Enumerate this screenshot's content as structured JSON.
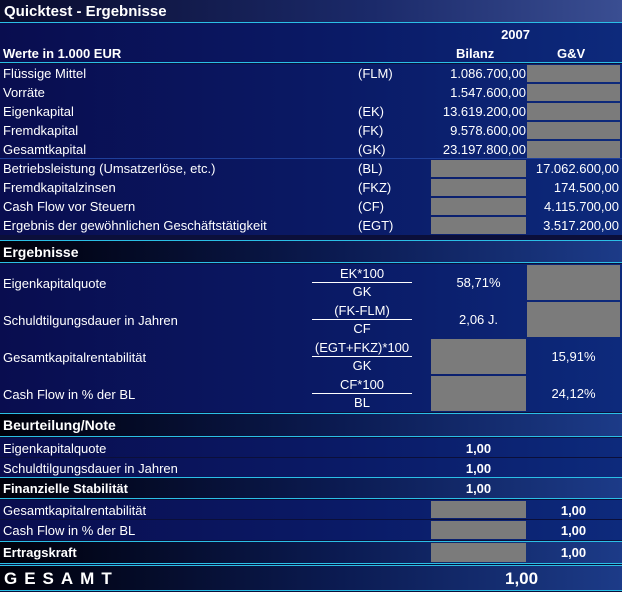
{
  "title": "Quicktest - Ergebnisse",
  "header": {
    "year": "2007",
    "values_label": "Werte in 1.000 EUR",
    "col_bilanz": "Bilanz",
    "col_guv": "G&V"
  },
  "balance_rows": [
    {
      "label": "Flüssige Mittel",
      "abbr": "(FLM)",
      "bilanz": "1.086.700,00",
      "guv": ""
    },
    {
      "label": "Vorräte",
      "abbr": "",
      "bilanz": "1.547.600,00",
      "guv": ""
    },
    {
      "label": "Eigenkapital",
      "abbr": "(EK)",
      "bilanz": "13.619.200,00",
      "guv": ""
    },
    {
      "label": "Fremdkapital",
      "abbr": "(FK)",
      "bilanz": "9.578.600,00",
      "guv": ""
    },
    {
      "label": "Gesamtkapital",
      "abbr": "(GK)",
      "bilanz": "23.197.800,00",
      "guv": ""
    },
    {
      "label": "Betriebsleistung (Umsatzerlöse, etc.)",
      "abbr": "(BL)",
      "bilanz": "",
      "guv": "17.062.600,00"
    },
    {
      "label": "Fremdkapitalzinsen",
      "abbr": "(FKZ)",
      "bilanz": "",
      "guv": "174.500,00"
    },
    {
      "label": "Cash Flow vor Steuern",
      "abbr": "(CF)",
      "bilanz": "",
      "guv": "4.115.700,00"
    },
    {
      "label": "Ergebnis der gewöhnlichen Geschäftstätigkeit",
      "abbr": "(EGT)",
      "bilanz": "",
      "guv": "3.517.200,00"
    }
  ],
  "ergebnisse": {
    "title": "Ergebnisse",
    "rows": [
      {
        "label": "Eigenkapitalquote",
        "numerator": "EK*100",
        "denominator": "GK",
        "bilanz": "58,71%",
        "guv": ""
      },
      {
        "label": "Schuldtilgungsdauer in Jahren",
        "numerator": "(FK-FLM)",
        "denominator": "CF",
        "bilanz": "2,06 J.",
        "guv": ""
      },
      {
        "label": "Gesamtkapitalrentabilität",
        "numerator": "(EGT+FKZ)*100",
        "denominator": "GK",
        "bilanz": "",
        "guv": "15,91%"
      },
      {
        "label": "Cash Flow in % der BL",
        "numerator": "CF*100",
        "denominator": "BL",
        "bilanz": "",
        "guv": "24,12%"
      }
    ]
  },
  "beurteilung": {
    "title": "Beurteilung/Note",
    "rows": [
      {
        "label": "Eigenkapitalquote",
        "bilanz": "1,00",
        "guv": ""
      },
      {
        "label": "Schuldtilgungsdauer in Jahren",
        "bilanz": "1,00",
        "guv": ""
      },
      {
        "label": "Finanzielle Stabilität",
        "bilanz": "1,00",
        "guv": ""
      },
      {
        "label": "Gesamtkapitalrentabilität",
        "bilanz": "",
        "guv": "1,00"
      },
      {
        "label": "Cash Flow in % der BL",
        "bilanz": "",
        "guv": "1,00"
      },
      {
        "label": "Ertragskraft",
        "bilanz": "",
        "guv": "1,00"
      }
    ]
  },
  "total": {
    "label": "GESAMT",
    "value": "1,00"
  },
  "colors": {
    "gray_cell": "#7b7b7b",
    "rule": "#2bbfe6",
    "background": "#0a1a66"
  }
}
